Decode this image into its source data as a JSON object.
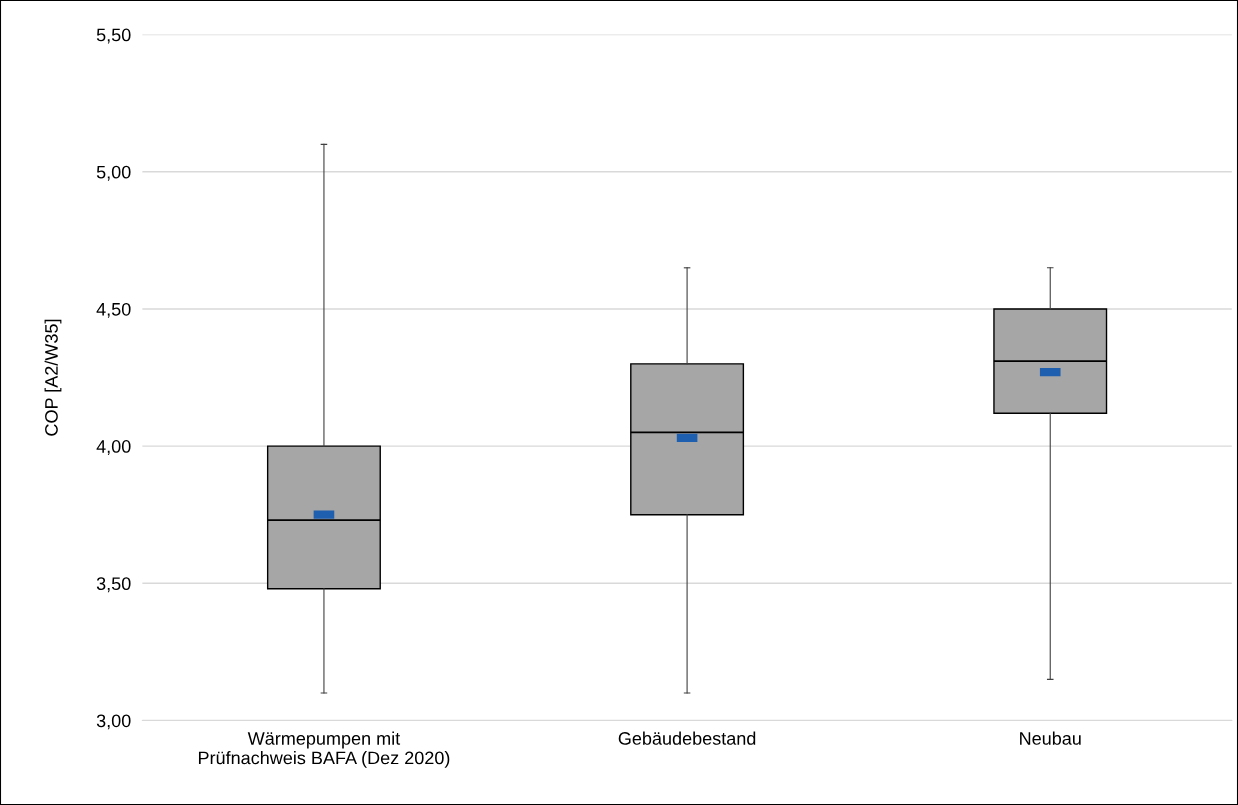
{
  "chart_data": {
    "type": "box",
    "ylabel": "COP [A2/W35]",
    "categories": [
      "Wärmepumpen mit\nPrüfnachweis BAFA (Dez 2020)",
      "Gebäudebestand",
      "Neubau"
    ],
    "series": [
      {
        "color": "#a6a6a6",
        "boxes": [
          {
            "low": 3.1,
            "q1": 3.48,
            "median": 3.73,
            "q3": 4.0,
            "high": 5.1
          },
          {
            "low": 3.1,
            "q1": 3.75,
            "median": 4.05,
            "q3": 4.3,
            "high": 4.65
          },
          {
            "low": 3.15,
            "q1": 4.12,
            "median": 4.31,
            "q3": 4.5,
            "high": 4.65
          }
        ]
      },
      {
        "type": "scatter",
        "color": "#1f5fb0",
        "x": [
          "Wärmepumpen mit\nPrüfnachweis BAFA (Dez 2020)",
          "Gebäudebestand",
          "Neubau"
        ],
        "values": [
          3.75,
          4.03,
          4.27
        ]
      }
    ],
    "ylim": [
      3.0,
      5.5
    ],
    "yticks": [
      {
        "value": 3.0,
        "label": "3,00"
      },
      {
        "value": 3.5,
        "label": "3,50"
      },
      {
        "value": 4.0,
        "label": "4,00"
      },
      {
        "value": 4.5,
        "label": "4,50"
      },
      {
        "value": 5.0,
        "label": "5,00"
      },
      {
        "value": 5.5,
        "label": "5,50"
      }
    ],
    "grid": "y",
    "legend": false
  }
}
